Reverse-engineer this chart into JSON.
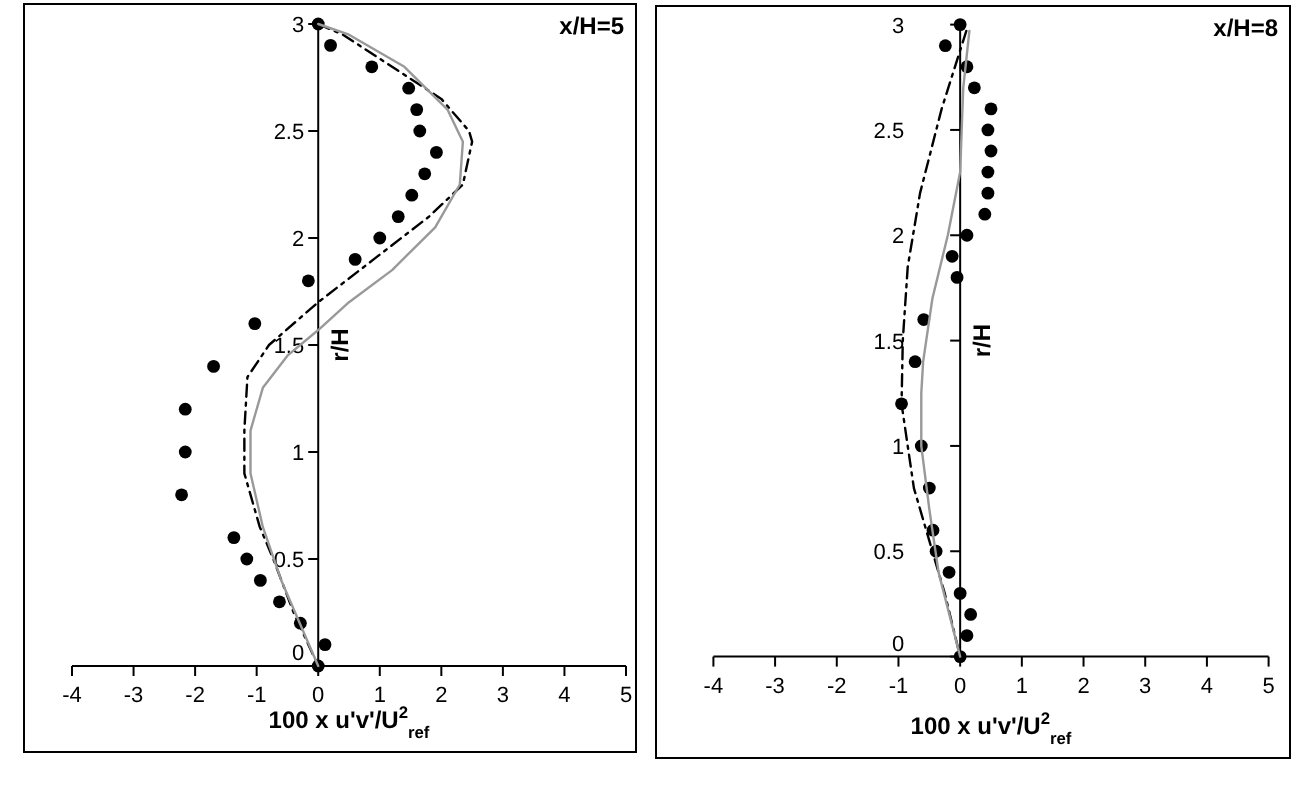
{
  "chart_data": [
    {
      "type": "scatter",
      "title": "x/H=5",
      "xlabel": "100 x u'v'/U$^{2}$$_{ref}$",
      "ylabel": "r/H",
      "xlim": [
        -4,
        5
      ],
      "ylim": [
        0,
        3
      ],
      "xticks": [
        -4,
        -3,
        -2,
        -1,
        0,
        1,
        2,
        3,
        4,
        5
      ],
      "yticks": [
        0,
        0.5,
        1,
        1.5,
        2,
        2.5,
        3
      ],
      "grid": false,
      "series": [
        {
          "color": "#000000",
          "marker": "circle",
          "x": [
            0,
            0.2,
            0.87,
            1.47,
            1.6,
            1.65,
            1.92,
            1.73,
            1.52,
            1.3,
            1.0,
            0.6,
            -0.16,
            -1.03,
            -1.7,
            -2.16,
            -2.16,
            -2.22,
            -1.37,
            -1.16,
            -0.94,
            -0.63,
            -0.29,
            0.11,
            0
          ],
          "values": [
            3,
            2.9,
            2.8,
            2.7,
            2.6,
            2.5,
            2.4,
            2.3,
            2.2,
            2.1,
            2.0,
            1.9,
            1.8,
            1.6,
            1.4,
            1.2,
            1.0,
            0.8,
            0.6,
            0.5,
            0.4,
            0.3,
            0.2,
            0.1,
            0
          ]
        },
        {
          "type": "line",
          "color": "#000000",
          "line_style": "dashed",
          "x": [
            0,
            0.4,
            1.2,
            2.0,
            2.45,
            2.5,
            2.35,
            1.8,
            0.9,
            0,
            -0.8,
            -1.15,
            -1.2,
            -1.2,
            -0.95,
            -0.73,
            -0.4,
            0
          ],
          "values": [
            3,
            2.95,
            2.8,
            2.65,
            2.5,
            2.45,
            2.25,
            2.1,
            1.9,
            1.7,
            1.5,
            1.35,
            1.1,
            0.9,
            0.65,
            0.5,
            0.25,
            0
          ]
        },
        {
          "type": "line",
          "color": "#999999",
          "line_style": "solid",
          "x": [
            0,
            0.5,
            1.4,
            2.1,
            2.35,
            2.3,
            1.9,
            1.2,
            0.5,
            0,
            -0.5,
            -0.9,
            -1.1,
            -1.1,
            -0.9,
            -0.6,
            0
          ],
          "values": [
            3,
            2.95,
            2.8,
            2.6,
            2.45,
            2.25,
            2.05,
            1.85,
            1.7,
            1.57,
            1.45,
            1.3,
            1.1,
            0.9,
            0.65,
            0.4,
            0
          ]
        }
      ]
    },
    {
      "type": "scatter",
      "title": "x/H=8",
      "xlabel": "100 x u'v'/U$^{2}$$_{ref}$",
      "ylabel": "r/H",
      "xlim": [
        -4,
        5
      ],
      "ylim": [
        0,
        3
      ],
      "xticks": [
        -4,
        -3,
        -2,
        -1,
        0,
        1,
        2,
        3,
        4,
        5
      ],
      "yticks": [
        0,
        0.5,
        1,
        1.5,
        2,
        2.5,
        3
      ],
      "grid": false,
      "series": [
        {
          "color": "#000000",
          "marker": "circle",
          "x": [
            0,
            -0.24,
            0.11,
            0.23,
            0.5,
            0.45,
            0.5,
            0.45,
            0.45,
            0.4,
            0.11,
            -0.13,
            -0.05,
            -0.59,
            -0.73,
            -0.95,
            -0.63,
            -0.5,
            -0.44,
            -0.39,
            -0.18,
            0,
            0.17,
            0.11,
            0
          ],
          "values": [
            3,
            2.9,
            2.8,
            2.7,
            2.6,
            2.5,
            2.4,
            2.3,
            2.2,
            2.1,
            2.0,
            1.9,
            1.8,
            1.6,
            1.4,
            1.2,
            1.0,
            0.8,
            0.6,
            0.5,
            0.4,
            0.3,
            0.2,
            0.1,
            0
          ]
        },
        {
          "type": "line",
          "color": "#000000",
          "line_style": "dashed",
          "x": [
            0.1,
            -0.3,
            -0.65,
            -0.85,
            -0.93,
            -0.95,
            -0.75,
            -0.45,
            -0.25,
            0
          ],
          "values": [
            2.97,
            2.6,
            2.2,
            1.85,
            1.5,
            1.2,
            0.8,
            0.5,
            0.3,
            0
          ]
        },
        {
          "type": "line",
          "color": "#999999",
          "line_style": "solid",
          "x": [
            0.15,
            0.05,
            0,
            -0.2,
            -0.45,
            -0.6,
            -0.63,
            -0.63,
            -0.5,
            -0.35,
            0
          ],
          "values": [
            2.97,
            2.7,
            2.3,
            2.0,
            1.7,
            1.4,
            1.25,
            1.0,
            0.7,
            0.4,
            0
          ]
        }
      ]
    }
  ]
}
